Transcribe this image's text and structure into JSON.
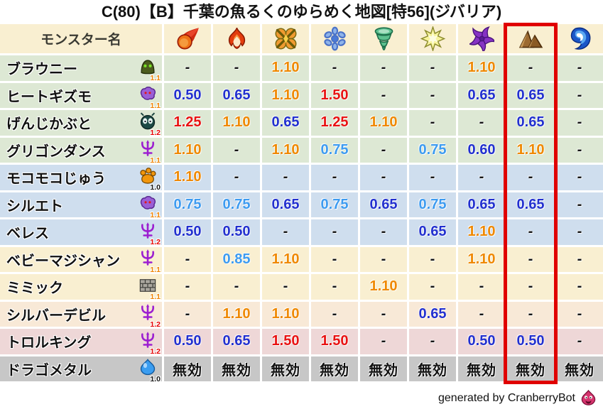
{
  "title": "C(80)【B】千葉の魚るくのゆらめく地図[特56](ジバリア)",
  "footer": {
    "text": "generated by CranberryBot",
    "icon": "pink-slime-face-icon"
  },
  "table": {
    "name_header": "モンスター名",
    "elements": [
      {
        "id": "mera-fire",
        "icon": "fireball-icon"
      },
      {
        "id": "gira-blaze",
        "icon": "flame-icon"
      },
      {
        "id": "io-bang",
        "icon": "burst-icon"
      },
      {
        "id": "hyado-ice",
        "icon": "snowflake-icon"
      },
      {
        "id": "bagi-wind",
        "icon": "tornado-icon"
      },
      {
        "id": "dein-zap",
        "icon": "spark-icon"
      },
      {
        "id": "dolma-dark",
        "icon": "pinwheel-icon"
      },
      {
        "id": "jibaria-earth",
        "icon": "mountain-icon",
        "highlighted": true
      },
      {
        "id": "water",
        "icon": "wave-icon"
      }
    ],
    "highlight_column": 8,
    "rows": [
      {
        "name": "ブラウニー",
        "family": "hood",
        "version": "1.1",
        "tint": "green",
        "values": [
          "-",
          "-",
          "1.10",
          "-",
          "-",
          "-",
          "1.10",
          "-",
          "-"
        ]
      },
      {
        "name": "ヒートギズモ",
        "family": "ghost",
        "version": "1.1",
        "tint": "green",
        "values": [
          "0.50",
          "0.65",
          "1.10",
          "1.50",
          "-",
          "-",
          "0.65",
          "0.65",
          "-"
        ]
      },
      {
        "name": "げんじかぶと",
        "family": "beetle",
        "version": "1.2",
        "tint": "green",
        "values": [
          "1.25",
          "1.10",
          "0.65",
          "1.25",
          "1.10",
          "-",
          "-",
          "0.65",
          "-"
        ]
      },
      {
        "name": "グリゴンダンス",
        "family": "trident",
        "version": "1.1",
        "tint": "green",
        "values": [
          "1.10",
          "-",
          "1.10",
          "0.75",
          "-",
          "0.75",
          "0.60",
          "1.10",
          "-"
        ]
      },
      {
        "name": "モコモコじゅう",
        "family": "paw",
        "version": "1.0",
        "tint": "blue",
        "values": [
          "1.10",
          "-",
          "-",
          "-",
          "-",
          "-",
          "-",
          "-",
          "-"
        ]
      },
      {
        "name": "シルエト",
        "family": "ghost",
        "version": "1.1",
        "tint": "blue",
        "values": [
          "0.75",
          "0.75",
          "0.65",
          "0.75",
          "0.65",
          "0.75",
          "0.65",
          "0.65",
          "-"
        ]
      },
      {
        "name": "ベレス",
        "family": "trident",
        "version": "1.2",
        "tint": "blue",
        "values": [
          "0.50",
          "0.50",
          "-",
          "-",
          "-",
          "0.65",
          "1.10",
          "-",
          "-"
        ]
      },
      {
        "name": "ベビーマジシャン",
        "family": "trident",
        "version": "1.1",
        "tint": "cream",
        "values": [
          "-",
          "0.85",
          "1.10",
          "-",
          "-",
          "-",
          "1.10",
          "-",
          "-"
        ]
      },
      {
        "name": "ミミック",
        "family": "brick",
        "version": "1.1",
        "tint": "cream",
        "values": [
          "-",
          "-",
          "-",
          "-",
          "1.10",
          "-",
          "-",
          "-",
          "-"
        ]
      },
      {
        "name": "シルバーデビル",
        "family": "trident",
        "version": "1.2",
        "tint": "peach",
        "values": [
          "-",
          "1.10",
          "1.10",
          "-",
          "-",
          "0.65",
          "-",
          "-",
          "-"
        ]
      },
      {
        "name": "トロルキング",
        "family": "trident",
        "version": "1.2",
        "tint": "pink",
        "values": [
          "0.50",
          "0.65",
          "1.50",
          "1.50",
          "-",
          "-",
          "0.50",
          "0.50",
          "-"
        ]
      },
      {
        "name": "ドラゴメタル",
        "family": "slime",
        "version": "1.0",
        "tint": "gray",
        "values": [
          "無効",
          "無効",
          "無効",
          "無効",
          "無効",
          "無効",
          "無効",
          "無効",
          "無効"
        ]
      }
    ]
  },
  "palette": {
    "header_bg": "#f9efd1",
    "row_tints": {
      "green": "#dde8d4",
      "blue": "#cfdeee",
      "cream": "#f9efd1",
      "peach": "#f8e9d7",
      "pink": "#eed7d7",
      "gray": "#c7c7c7"
    },
    "value_colors": {
      "strong_resist": "#2230cf",
      "mild_resist": "#3d9bf0",
      "mild_weak": "#ef8800",
      "strong_weak": "#e81212",
      "neutral": "#161616"
    },
    "version_colors": {
      "1.0": "#161616",
      "1.1": "#f08300",
      "1.2": "#e60000"
    },
    "highlight_border": "#e00000"
  }
}
